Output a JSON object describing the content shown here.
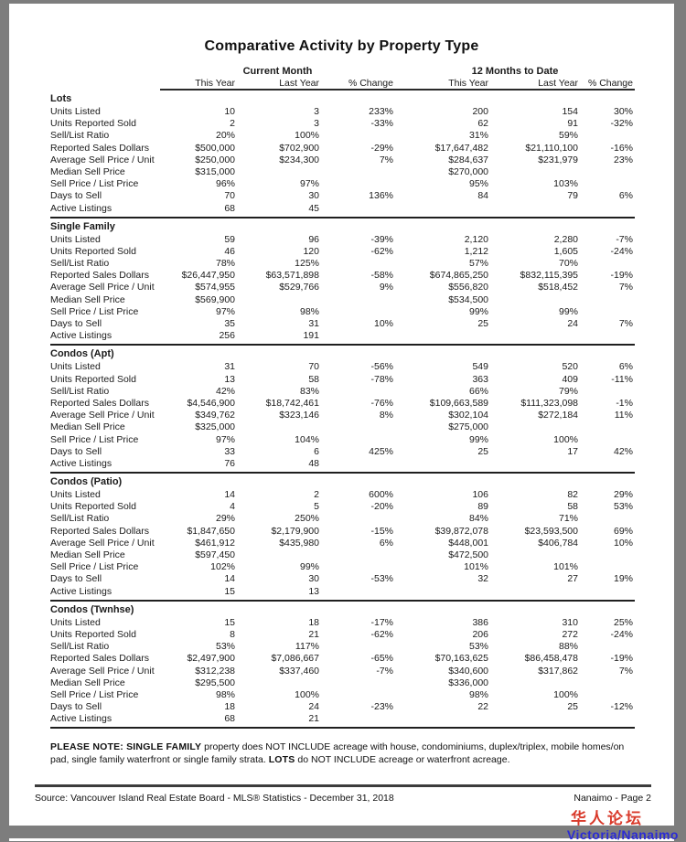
{
  "page": {
    "title": "Comparative Activity by Property Type",
    "footer_note": {
      "bold1": "PLEASE NOTE: SINGLE FAMILY",
      "text1": " property does NOT INCLUDE acreage with house, condominiums, duplex/triplex, mobile homes/on pad, single family waterfront or single family strata. ",
      "bold2": "LOTS",
      "text2": " do NOT INCLUDE acreage or waterfront acreage."
    },
    "source": "Source: Vancouver Island Real Estate Board - MLS® Statistics - December 31, 2018",
    "page_label": "Nanaimo - Page 2"
  },
  "table": {
    "group_headers": [
      "Current Month",
      "12 Months to Date"
    ],
    "sub_headers": [
      "This Year",
      "Last Year",
      "% Change",
      "This Year",
      "Last Year",
      "% Change"
    ],
    "row_labels": [
      "Units Listed",
      "Units Reported Sold",
      "Sell/List Ratio",
      "Reported Sales Dollars",
      "Average Sell Price / Unit",
      "Median Sell Price",
      "Sell Price / List Price",
      "Days to Sell",
      "Active Listings"
    ],
    "sections": [
      {
        "name": "Lots",
        "rows": [
          [
            "10",
            "3",
            "233%",
            "200",
            "154",
            "30%"
          ],
          [
            "2",
            "3",
            "-33%",
            "62",
            "91",
            "-32%"
          ],
          [
            "20%",
            "100%",
            "",
            "31%",
            "59%",
            ""
          ],
          [
            "$500,000",
            "$702,900",
            "-29%",
            "$17,647,482",
            "$21,110,100",
            "-16%"
          ],
          [
            "$250,000",
            "$234,300",
            "7%",
            "$284,637",
            "$231,979",
            "23%"
          ],
          [
            "$315,000",
            "",
            "",
            "$270,000",
            "",
            ""
          ],
          [
            "96%",
            "97%",
            "",
            "95%",
            "103%",
            ""
          ],
          [
            "70",
            "30",
            "136%",
            "84",
            "79",
            "6%"
          ],
          [
            "68",
            "45",
            "",
            "",
            "",
            ""
          ]
        ]
      },
      {
        "name": "Single Family",
        "rows": [
          [
            "59",
            "96",
            "-39%",
            "2,120",
            "2,280",
            "-7%"
          ],
          [
            "46",
            "120",
            "-62%",
            "1,212",
            "1,605",
            "-24%"
          ],
          [
            "78%",
            "125%",
            "",
            "57%",
            "70%",
            ""
          ],
          [
            "$26,447,950",
            "$63,571,898",
            "-58%",
            "$674,865,250",
            "$832,115,395",
            "-19%"
          ],
          [
            "$574,955",
            "$529,766",
            "9%",
            "$556,820",
            "$518,452",
            "7%"
          ],
          [
            "$569,900",
            "",
            "",
            "$534,500",
            "",
            ""
          ],
          [
            "97%",
            "98%",
            "",
            "99%",
            "99%",
            ""
          ],
          [
            "35",
            "31",
            "10%",
            "25",
            "24",
            "7%"
          ],
          [
            "256",
            "191",
            "",
            "",
            "",
            ""
          ]
        ]
      },
      {
        "name": "Condos (Apt)",
        "rows": [
          [
            "31",
            "70",
            "-56%",
            "549",
            "520",
            "6%"
          ],
          [
            "13",
            "58",
            "-78%",
            "363",
            "409",
            "-11%"
          ],
          [
            "42%",
            "83%",
            "",
            "66%",
            "79%",
            ""
          ],
          [
            "$4,546,900",
            "$18,742,461",
            "-76%",
            "$109,663,589",
            "$111,323,098",
            "-1%"
          ],
          [
            "$349,762",
            "$323,146",
            "8%",
            "$302,104",
            "$272,184",
            "11%"
          ],
          [
            "$325,000",
            "",
            "",
            "$275,000",
            "",
            ""
          ],
          [
            "97%",
            "104%",
            "",
            "99%",
            "100%",
            ""
          ],
          [
            "33",
            "6",
            "425%",
            "25",
            "17",
            "42%"
          ],
          [
            "76",
            "48",
            "",
            "",
            "",
            ""
          ]
        ]
      },
      {
        "name": "Condos (Patio)",
        "rows": [
          [
            "14",
            "2",
            "600%",
            "106",
            "82",
            "29%"
          ],
          [
            "4",
            "5",
            "-20%",
            "89",
            "58",
            "53%"
          ],
          [
            "29%",
            "250%",
            "",
            "84%",
            "71%",
            ""
          ],
          [
            "$1,847,650",
            "$2,179,900",
            "-15%",
            "$39,872,078",
            "$23,593,500",
            "69%"
          ],
          [
            "$461,912",
            "$435,980",
            "6%",
            "$448,001",
            "$406,784",
            "10%"
          ],
          [
            "$597,450",
            "",
            "",
            "$472,500",
            "",
            ""
          ],
          [
            "102%",
            "99%",
            "",
            "101%",
            "101%",
            ""
          ],
          [
            "14",
            "30",
            "-53%",
            "32",
            "27",
            "19%"
          ],
          [
            "15",
            "13",
            "",
            "",
            "",
            ""
          ]
        ]
      },
      {
        "name": "Condos (Twnhse)",
        "rows": [
          [
            "15",
            "18",
            "-17%",
            "386",
            "310",
            "25%"
          ],
          [
            "8",
            "21",
            "-62%",
            "206",
            "272",
            "-24%"
          ],
          [
            "53%",
            "117%",
            "",
            "53%",
            "88%",
            ""
          ],
          [
            "$2,497,900",
            "$7,086,667",
            "-65%",
            "$70,163,625",
            "$86,458,478",
            "-19%"
          ],
          [
            "$312,238",
            "$337,460",
            "-7%",
            "$340,600",
            "$317,862",
            "7%"
          ],
          [
            "$295,500",
            "",
            "",
            "$336,000",
            "",
            ""
          ],
          [
            "98%",
            "100%",
            "",
            "98%",
            "100%",
            ""
          ],
          [
            "18",
            "24",
            "-23%",
            "22",
            "25",
            "-12%"
          ],
          [
            "68",
            "21",
            "",
            "",
            "",
            ""
          ]
        ]
      }
    ]
  },
  "watermark": {
    "line1": "华人论坛",
    "line2": "Victoria/Nanaimo",
    "color1": "#d93a2b",
    "color2": "#2b2bd5"
  }
}
